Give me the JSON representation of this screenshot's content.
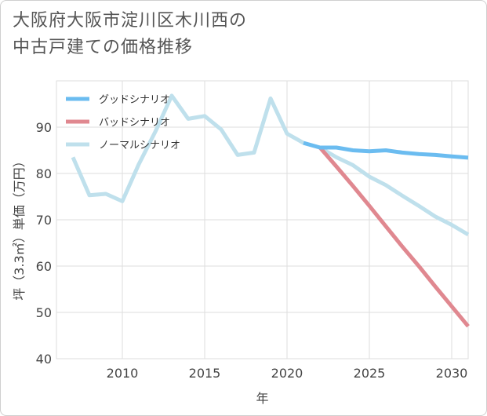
{
  "header": {
    "title_line1": "大阪府大阪市淀川区木川西の",
    "title_line2": "中古戸建ての価格推移"
  },
  "chart_data": {
    "type": "line",
    "title": "大阪府大阪市淀川区木川西の中古戸建ての価格推移",
    "xlabel": "年",
    "ylabel": "坪（3.3㎡）単価（万円）",
    "xlim": [
      2006,
      2031
    ],
    "ylim": [
      40,
      100
    ],
    "x_ticks": [
      2010,
      2015,
      2020,
      2025,
      2030
    ],
    "y_ticks": [
      40,
      50,
      60,
      70,
      80,
      90
    ],
    "grid": true,
    "legend_position": "top-left",
    "series": [
      {
        "name": "ノーマルシナリオ",
        "color": "#bfe0ec",
        "x": [
          2007,
          2008,
          2009,
          2010,
          2011,
          2012,
          2013,
          2014,
          2015,
          2016,
          2017,
          2018,
          2019,
          2020,
          2021,
          2022,
          2023,
          2024,
          2025,
          2026,
          2027,
          2028,
          2029,
          2030,
          2031
        ],
        "values": [
          83.5,
          75.3,
          75.6,
          74.0,
          82.0,
          89.0,
          96.8,
          91.8,
          92.4,
          89.5,
          84.0,
          84.5,
          96.2,
          88.6,
          86.6,
          85.6,
          83.5,
          81.8,
          79.3,
          77.5,
          75.2,
          73.0,
          70.7,
          68.9,
          66.8
        ]
      },
      {
        "name": "バッドシナリオ",
        "color": "#e08890",
        "x": [
          2022,
          2023,
          2024,
          2025,
          2026,
          2027,
          2028,
          2029,
          2030,
          2031
        ],
        "values": [
          85.6,
          81.5,
          77.3,
          73.0,
          68.6,
          64.2,
          60.0,
          55.6,
          51.3,
          47.0
        ]
      },
      {
        "name": "グッドシナリオ",
        "color": "#6bbcf0",
        "x": [
          2021,
          2022,
          2023,
          2024,
          2025,
          2026,
          2027,
          2028,
          2029,
          2030,
          2031
        ],
        "values": [
          86.6,
          85.6,
          85.6,
          85.0,
          84.8,
          85.0,
          84.5,
          84.2,
          84.0,
          83.7,
          83.4
        ]
      }
    ],
    "legend": [
      "グッドシナリオ",
      "バッドシナリオ",
      "ノーマルシナリオ"
    ]
  }
}
